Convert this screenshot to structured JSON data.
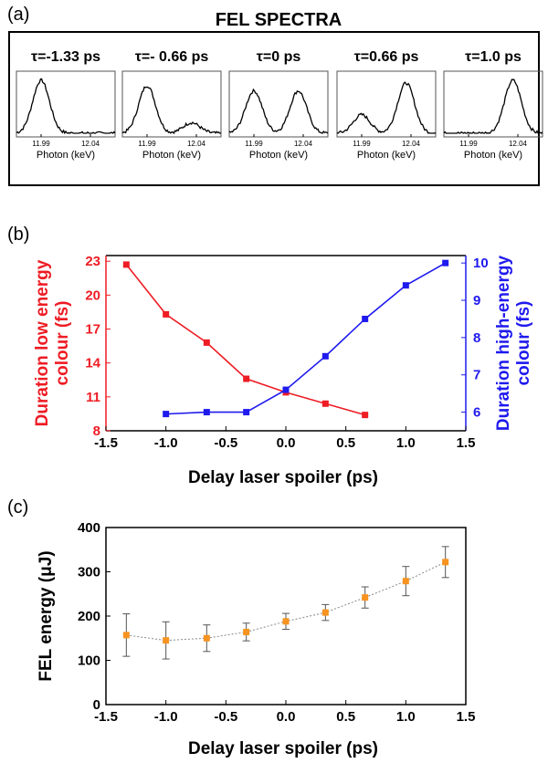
{
  "panel_labels": {
    "a": "(a)",
    "b": "(b)",
    "c": "(c)"
  },
  "colors": {
    "red": "#ee1c24",
    "blue": "#1f1aee",
    "orange": "#f7931e",
    "gray": "#888888"
  },
  "chart_data": [
    {
      "panel": "(a)",
      "type": "line",
      "title": "FEL SPECTRA",
      "xlabel": "Photon (keV)",
      "x_ticks": [
        "11.99",
        "12.04"
      ],
      "subplots": [
        {
          "label": "τ=-1.33 ps",
          "peaks": [
            {
              "x": 11.99,
              "height": 1.0
            }
          ]
        },
        {
          "label": "τ=- 0.66 ps",
          "peaks": [
            {
              "x": 11.99,
              "height": 0.9
            },
            {
              "x": 12.035,
              "height": 0.2
            }
          ]
        },
        {
          "label": "τ=0 ps",
          "peaks": [
            {
              "x": 11.99,
              "height": 0.8
            },
            {
              "x": 12.035,
              "height": 0.8
            }
          ]
        },
        {
          "label": "τ=0.66 ps",
          "peaks": [
            {
              "x": 11.99,
              "height": 0.35
            },
            {
              "x": 12.035,
              "height": 0.95
            }
          ]
        },
        {
          "label": "τ=1.0 ps",
          "peaks": [
            {
              "x": 12.035,
              "height": 1.0
            }
          ]
        }
      ]
    },
    {
      "panel": "(b)",
      "type": "line",
      "xlabel": "Delay laser spoiler (ps)",
      "ylabel_left": "Duration low energy colour (fs)",
      "ylabel_right": "Duration high-energy colour (fs)",
      "xlim": [
        -1.5,
        1.5
      ],
      "x_ticks": [
        "-1.5",
        "-1.0",
        "-0.5",
        "0.0",
        "0.5",
        "1.0",
        "1.5"
      ],
      "ylim_left": [
        8,
        23.5
      ],
      "y_ticks_left": [
        "8",
        "11",
        "14",
        "17",
        "20",
        "23"
      ],
      "ylim_right": [
        5.5,
        10.2
      ],
      "y_ticks_right": [
        "6",
        "7",
        "8",
        "9",
        "10"
      ],
      "series": [
        {
          "axis": "left",
          "color": "#ee1c24",
          "x": [
            -1.33,
            -1.0,
            -0.66,
            -0.33,
            0.0,
            0.33,
            0.66
          ],
          "y": [
            22.7,
            18.3,
            15.8,
            12.6,
            11.4,
            10.4,
            9.4
          ]
        },
        {
          "axis": "right",
          "color": "#1f1aee",
          "x": [
            -1.0,
            -0.66,
            -0.33,
            0.0,
            0.33,
            0.66,
            1.0,
            1.33
          ],
          "y": [
            5.95,
            6.0,
            6.0,
            6.6,
            7.5,
            8.5,
            9.4,
            10.0
          ]
        }
      ]
    },
    {
      "panel": "(c)",
      "type": "scatter",
      "xlabel": "Delay laser spoiler (ps)",
      "ylabel": "FEL energy (μJ)",
      "xlim": [
        -1.5,
        1.5
      ],
      "x_ticks": [
        "-1.5",
        "-1.0",
        "-0.5",
        "0.0",
        "0.5",
        "1.0",
        "1.5"
      ],
      "ylim": [
        0,
        400
      ],
      "y_ticks": [
        "0",
        "100",
        "200",
        "300",
        "400"
      ],
      "series": [
        {
          "color": "#f7931e",
          "x": [
            -1.33,
            -1.0,
            -0.66,
            -0.33,
            0.0,
            0.33,
            0.66,
            1.0,
            1.33
          ],
          "y": [
            157,
            145,
            150,
            164,
            188,
            208,
            242,
            279,
            322
          ],
          "err": [
            48,
            42,
            30,
            20,
            18,
            18,
            24,
            33,
            35
          ]
        }
      ]
    }
  ]
}
